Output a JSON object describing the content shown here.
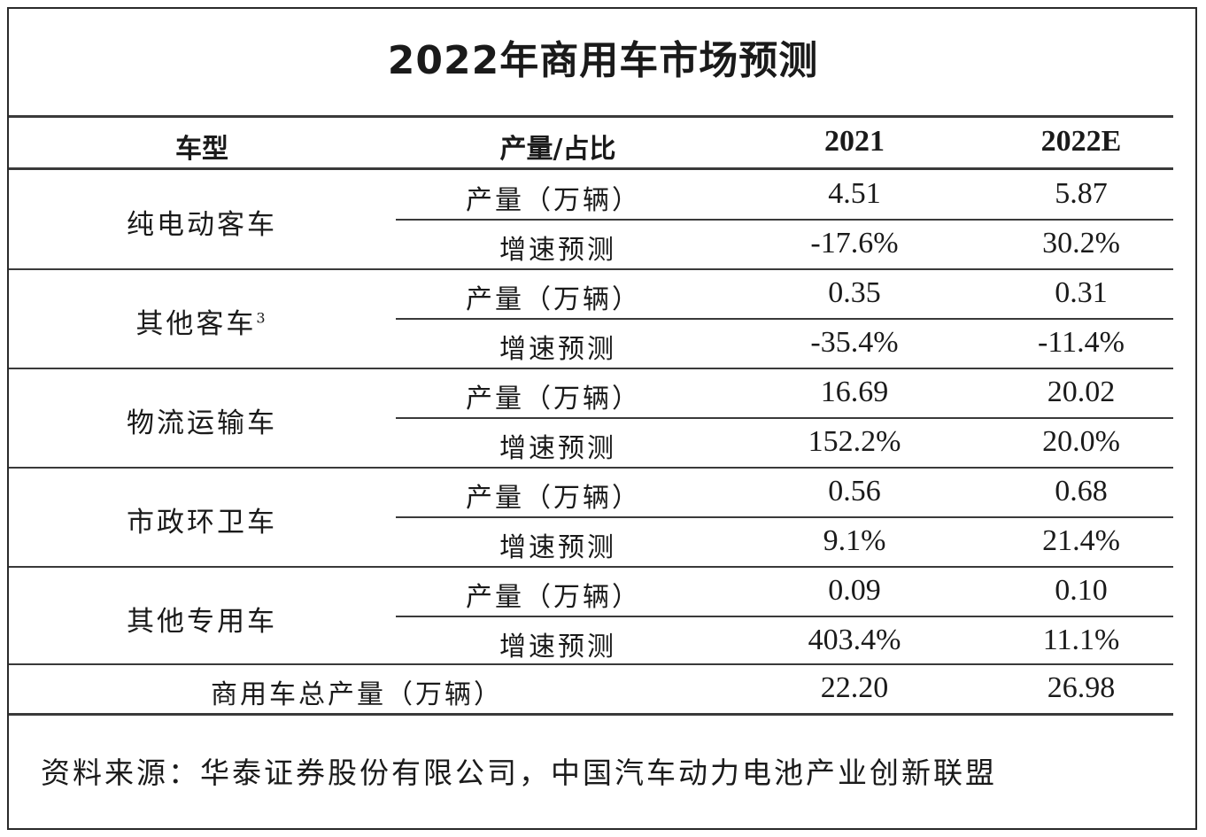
{
  "title": "2022年商用车市场预测",
  "header": {
    "col_type": "车型",
    "col_metric": "产量/占比",
    "col_2021": "2021",
    "col_2022": "2022E"
  },
  "categories": [
    {
      "name": "纯电动客车",
      "sup": "",
      "prod_label": "产量（万辆）",
      "growth_label": "增速预测",
      "prod_2021": "4.51",
      "prod_2022": "5.87",
      "growth_2021": "-17.6%",
      "growth_2022": "30.2%"
    },
    {
      "name": "其他客车",
      "sup": "3",
      "prod_label": "产量（万辆）",
      "growth_label": "增速预测",
      "prod_2021": "0.35",
      "prod_2022": "0.31",
      "growth_2021": "-35.4%",
      "growth_2022": "-11.4%"
    },
    {
      "name": "物流运输车",
      "sup": "",
      "prod_label": "产量（万辆）",
      "growth_label": "增速预测",
      "prod_2021": "16.69",
      "prod_2022": "20.02",
      "growth_2021": "152.2%",
      "growth_2022": "20.0%"
    },
    {
      "name": "市政环卫车",
      "sup": "",
      "prod_label": "产量（万辆）",
      "growth_label": "增速预测",
      "prod_2021": "0.56",
      "prod_2022": "0.68",
      "growth_2021": "9.1%",
      "growth_2022": "21.4%"
    },
    {
      "name": "其他专用车",
      "sup": "",
      "prod_label": "产量（万辆）",
      "growth_label": "增速预测",
      "prod_2021": "0.09",
      "prod_2022": "0.10",
      "growth_2021": "403.4%",
      "growth_2022": "11.1%"
    }
  ],
  "total": {
    "label": "商用车总产量（万辆）",
    "v2021": "22.20",
    "v2022": "26.98"
  },
  "source": "资料来源：华泰证券股份有限公司，中国汽车动力电池产业创新联盟"
}
